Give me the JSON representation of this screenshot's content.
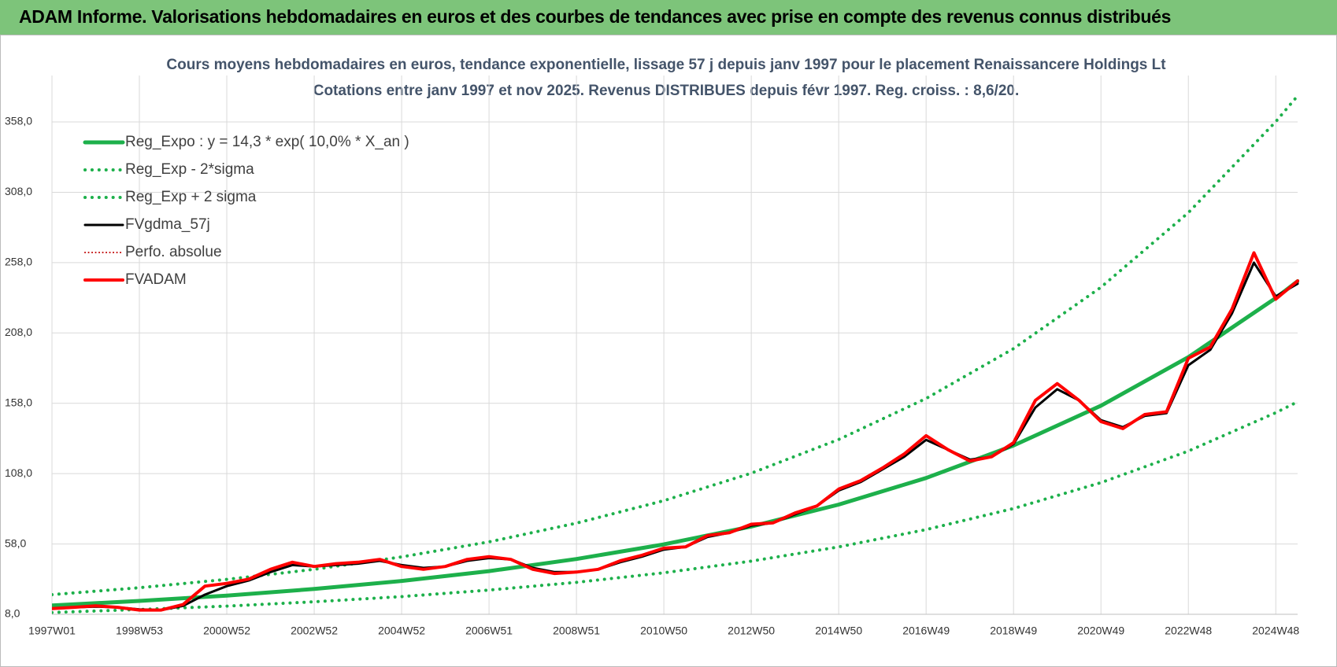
{
  "header": {
    "title": "ADAM Informe. Valorisations hebdomadaires en euros et des courbes de tendances avec prise en compte des revenus connus distribués"
  },
  "chart_data": {
    "type": "line",
    "title": "Cours moyens hebdomadaires en euros, tendance exponentielle, lissage 57 j depuis janv 1997 pour le placement Renaissancere Holdings Lt",
    "subtitle": "Cotations entre janv 1997 et nov 2025. Revenus DISTRIBUES depuis févr 1997. Reg. croiss. : 8,6/20.",
    "xlim": [
      0,
      1482
    ],
    "xticks": [
      {
        "value": 0,
        "label": "1997W01"
      },
      {
        "value": 104,
        "label": "1998W53"
      },
      {
        "value": 208,
        "label": "2000W52"
      },
      {
        "value": 312,
        "label": "2002W52"
      },
      {
        "value": 416,
        "label": "2004W52"
      },
      {
        "value": 520,
        "label": "2006W51"
      },
      {
        "value": 624,
        "label": "2008W51"
      },
      {
        "value": 728,
        "label": "2010W50"
      },
      {
        "value": 832,
        "label": "2012W50"
      },
      {
        "value": 936,
        "label": "2014W50"
      },
      {
        "value": 1040,
        "label": "2016W49"
      },
      {
        "value": 1144,
        "label": "2018W49"
      },
      {
        "value": 1248,
        "label": "2020W49"
      },
      {
        "value": 1352,
        "label": "2022W48"
      },
      {
        "value": 1456,
        "label": "2024W48"
      }
    ],
    "ylim": [
      8,
      391
    ],
    "yticks": [
      {
        "value": 8,
        "label": "8,0"
      },
      {
        "value": 58,
        "label": "58,0"
      },
      {
        "value": 108,
        "label": "108,0"
      },
      {
        "value": 158,
        "label": "158,0"
      },
      {
        "value": 208,
        "label": "208,0"
      },
      {
        "value": 258,
        "label": "258,0"
      },
      {
        "value": 308,
        "label": "308,0"
      },
      {
        "value": 358,
        "label": "358,0"
      }
    ],
    "grid": true,
    "legend": "top-left",
    "series": [
      {
        "name": "Reg_Expo : y = 14,3 * exp( 10,0% *  X_an )",
        "color": "#1db04b",
        "width": 5,
        "dash": false,
        "x": [
          0,
          104,
          208,
          312,
          416,
          520,
          624,
          728,
          832,
          936,
          1040,
          1144,
          1248,
          1352,
          1456,
          1482
        ],
        "values": [
          14.3,
          17.5,
          21.3,
          26.0,
          31.7,
          38.7,
          47.3,
          57.7,
          70.4,
          86.0,
          104.9,
          128.0,
          156.3,
          190.8,
          232.8,
          244.8
        ]
      },
      {
        "name": "Reg_Exp - 2*sigma",
        "color": "#1db04b",
        "width": 4,
        "dash": true,
        "x": [
          0,
          104,
          208,
          312,
          416,
          520,
          624,
          728,
          832,
          936,
          1040,
          1144,
          1248,
          1352,
          1456,
          1482
        ],
        "values": [
          9.3,
          11.4,
          13.8,
          16.9,
          20.6,
          25.2,
          30.7,
          37.5,
          45.8,
          55.9,
          68.2,
          83.2,
          101.6,
          124.0,
          151.3,
          159.1
        ]
      },
      {
        "name": "Reg_Exp + 2 sigma",
        "color": "#1db04b",
        "width": 4,
        "dash": true,
        "x": [
          0,
          104,
          208,
          312,
          416,
          520,
          624,
          728,
          832,
          936,
          1040,
          1144,
          1248,
          1352,
          1456,
          1482
        ],
        "values": [
          22.0,
          26.9,
          32.8,
          40.0,
          48.8,
          59.5,
          72.8,
          88.8,
          108.3,
          132.3,
          161.4,
          196.9,
          240.5,
          293.5,
          358.2,
          376.6
        ]
      },
      {
        "name": "FVgdma_57j",
        "color": "#000000",
        "width": 3,
        "dash": false,
        "x": [
          0,
          26,
          52,
          78,
          104,
          130,
          156,
          182,
          208,
          234,
          260,
          286,
          312,
          338,
          364,
          390,
          416,
          442,
          468,
          494,
          520,
          546,
          572,
          598,
          624,
          650,
          676,
          702,
          728,
          754,
          780,
          806,
          832,
          858,
          884,
          910,
          936,
          962,
          988,
          1014,
          1040,
          1066,
          1092,
          1118,
          1144,
          1170,
          1196,
          1222,
          1248,
          1274,
          1300,
          1326,
          1352,
          1378,
          1404,
          1430,
          1456,
          1482
        ],
        "values": [
          12,
          13,
          13.5,
          13,
          11.5,
          11,
          14,
          22,
          28,
          32,
          38,
          43,
          42,
          43,
          44,
          46,
          43,
          41,
          42,
          46,
          48,
          47,
          41,
          38,
          38,
          40,
          45,
          49,
          54,
          56,
          63,
          66,
          71,
          73,
          79,
          85,
          96,
          102,
          111,
          120,
          132,
          125,
          118,
          120,
          129,
          155,
          168,
          160,
          146,
          141,
          149,
          151,
          185,
          196,
          222,
          258,
          234,
          243
        ]
      },
      {
        "name": "Perfo. absolue",
        "color": "#c00000",
        "width": 2,
        "dash": true,
        "x": [
          0,
          26,
          52,
          78,
          104,
          130,
          156,
          182,
          208,
          234,
          260,
          286,
          312,
          338,
          364,
          390,
          416,
          442,
          468,
          494,
          520,
          546,
          572,
          598,
          624,
          650,
          676,
          702,
          728,
          754,
          780,
          806,
          832,
          858,
          884,
          910,
          936,
          962,
          988,
          1014,
          1040,
          1066,
          1092,
          1118,
          1144,
          1170,
          1196,
          1222,
          1248,
          1274,
          1300,
          1326,
          1352,
          1378,
          1404,
          1430,
          1456,
          1482
        ],
        "values": [
          12,
          13,
          14,
          13,
          11,
          11,
          15,
          28,
          30,
          33,
          40,
          45,
          42,
          44,
          45,
          47,
          42,
          40,
          42,
          47,
          49,
          47,
          40,
          37,
          38,
          40,
          46,
          50,
          55,
          56,
          64,
          66,
          72,
          73,
          80,
          85,
          97,
          103,
          112,
          122,
          135,
          125,
          117,
          120,
          130,
          160,
          172,
          160,
          145,
          140,
          150,
          152,
          190,
          198,
          225,
          265,
          232,
          245
        ]
      },
      {
        "name": "FVADAM",
        "color": "#ff0000",
        "width": 4,
        "dash": false,
        "x": [
          0,
          26,
          52,
          78,
          104,
          130,
          156,
          182,
          208,
          234,
          260,
          286,
          312,
          338,
          364,
          390,
          416,
          442,
          468,
          494,
          520,
          546,
          572,
          598,
          624,
          650,
          676,
          702,
          728,
          754,
          780,
          806,
          832,
          858,
          884,
          910,
          936,
          962,
          988,
          1014,
          1040,
          1066,
          1092,
          1118,
          1144,
          1170,
          1196,
          1222,
          1248,
          1274,
          1300,
          1326,
          1352,
          1378,
          1404,
          1430,
          1456,
          1482
        ],
        "values": [
          12,
          13,
          14,
          13,
          11,
          11,
          15,
          28,
          30,
          33,
          40,
          45,
          42,
          44,
          45,
          47,
          42,
          40,
          42,
          47,
          49,
          47,
          40,
          37,
          38,
          40,
          46,
          50,
          55,
          56,
          64,
          66,
          72,
          73,
          80,
          85,
          97,
          103,
          112,
          122,
          135,
          125,
          117,
          120,
          130,
          160,
          172,
          160,
          145,
          140,
          150,
          152,
          190,
          198,
          225,
          265,
          232,
          245
        ]
      }
    ]
  }
}
